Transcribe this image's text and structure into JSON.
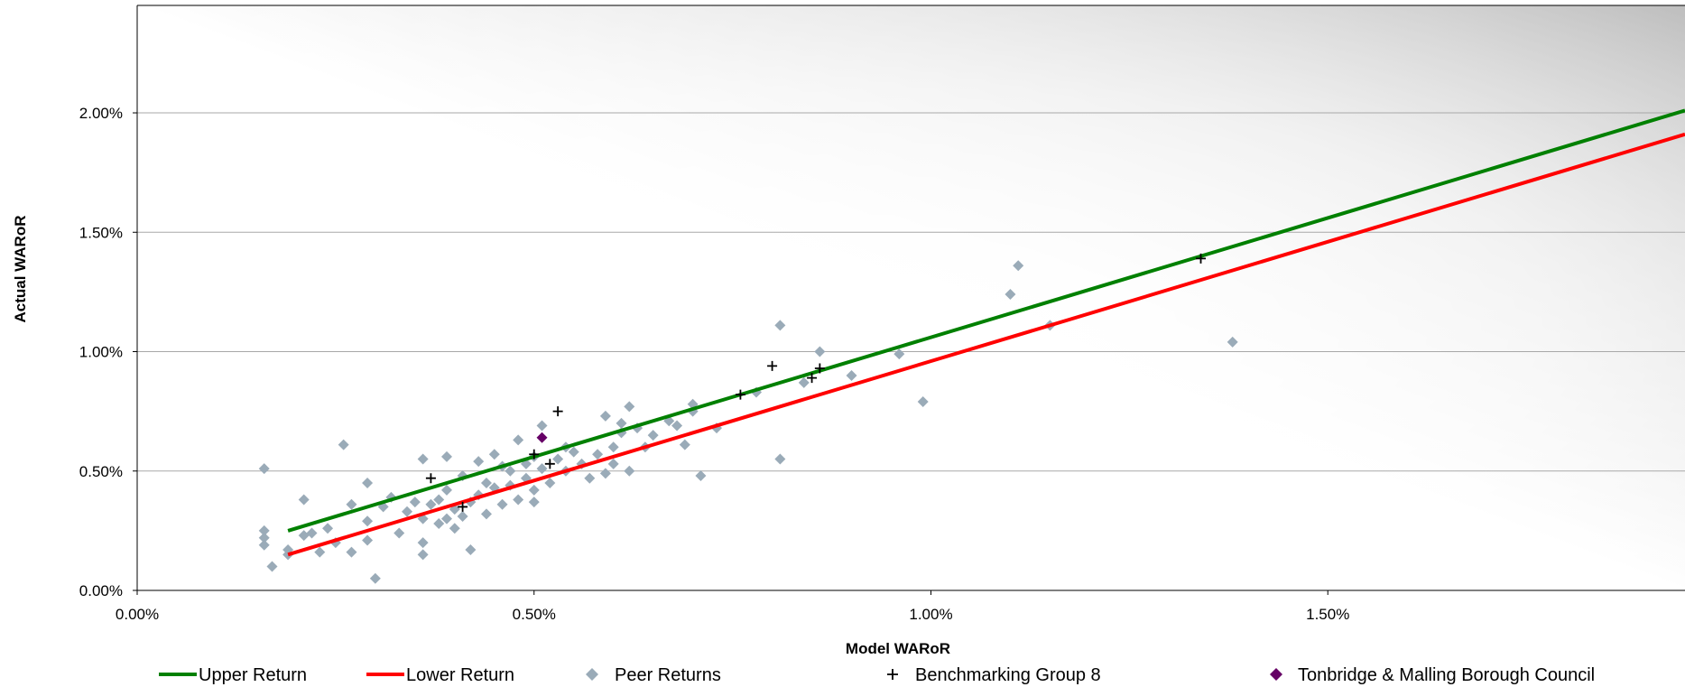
{
  "chart_data": {
    "type": "scatter",
    "title": "",
    "xlabel": "Model WARoR",
    "ylabel": "Actual WARoR",
    "xlim": [
      0,
      0.0195
    ],
    "ylim": [
      0,
      0.0245
    ],
    "x_ticks": [
      {
        "value": 0.0,
        "label": "0.00%"
      },
      {
        "value": 0.005,
        "label": "0.50%"
      },
      {
        "value": 0.01,
        "label": "1.00%"
      },
      {
        "value": 0.015,
        "label": "1.50%"
      }
    ],
    "y_ticks": [
      {
        "value": 0.0,
        "label": "0.00%"
      },
      {
        "value": 0.005,
        "label": "0.50%"
      },
      {
        "value": 0.01,
        "label": "1.00%"
      },
      {
        "value": 0.015,
        "label": "1.50%"
      },
      {
        "value": 0.02,
        "label": "2.00%"
      }
    ],
    "grid": "horizontal",
    "legend_position": "bottom",
    "colors": {
      "upper": "#008000",
      "lower": "#ff0000",
      "peer": "#9aabb8",
      "benchmark": "#000000",
      "council": "#660066",
      "background_light": "#ffffff",
      "background_dark": "#bdbdbd"
    },
    "series": [
      {
        "name": "Upper Return",
        "kind": "line",
        "points": [
          [
            0.0019,
            0.0025
          ],
          [
            0.0195,
            0.0201
          ]
        ]
      },
      {
        "name": "Lower Return",
        "kind": "line",
        "points": [
          [
            0.0019,
            0.0015
          ],
          [
            0.0195,
            0.0191
          ]
        ]
      },
      {
        "name": "Peer Returns",
        "kind": "scatter",
        "marker": "diamond",
        "points": [
          [
            0.0016,
            0.0051
          ],
          [
            0.0016,
            0.0025
          ],
          [
            0.0016,
            0.0022
          ],
          [
            0.0016,
            0.0019
          ],
          [
            0.0017,
            0.001
          ],
          [
            0.0019,
            0.0017
          ],
          [
            0.0019,
            0.0015
          ],
          [
            0.0021,
            0.0038
          ],
          [
            0.0021,
            0.0023
          ],
          [
            0.0022,
            0.0024
          ],
          [
            0.0023,
            0.0016
          ],
          [
            0.0024,
            0.0026
          ],
          [
            0.0025,
            0.002
          ],
          [
            0.0026,
            0.0061
          ],
          [
            0.0027,
            0.0036
          ],
          [
            0.0027,
            0.0016
          ],
          [
            0.0029,
            0.0045
          ],
          [
            0.0029,
            0.0029
          ],
          [
            0.0029,
            0.0021
          ],
          [
            0.003,
            0.0005
          ],
          [
            0.0031,
            0.0035
          ],
          [
            0.0032,
            0.0039
          ],
          [
            0.0033,
            0.0024
          ],
          [
            0.0034,
            0.0033
          ],
          [
            0.0035,
            0.0037
          ],
          [
            0.0036,
            0.0055
          ],
          [
            0.0036,
            0.0015
          ],
          [
            0.0036,
            0.002
          ],
          [
            0.0036,
            0.003
          ],
          [
            0.0037,
            0.0036
          ],
          [
            0.0038,
            0.0038
          ],
          [
            0.0038,
            0.0028
          ],
          [
            0.0039,
            0.0056
          ],
          [
            0.0039,
            0.0042
          ],
          [
            0.0039,
            0.003
          ],
          [
            0.004,
            0.0026
          ],
          [
            0.004,
            0.0034
          ],
          [
            0.0041,
            0.0031
          ],
          [
            0.0041,
            0.0048
          ],
          [
            0.0042,
            0.0017
          ],
          [
            0.0042,
            0.0037
          ],
          [
            0.0043,
            0.0054
          ],
          [
            0.0043,
            0.004
          ],
          [
            0.0044,
            0.0032
          ],
          [
            0.0044,
            0.0045
          ],
          [
            0.0045,
            0.0057
          ],
          [
            0.0045,
            0.0043
          ],
          [
            0.0046,
            0.0036
          ],
          [
            0.0046,
            0.0052
          ],
          [
            0.0047,
            0.005
          ],
          [
            0.0047,
            0.0044
          ],
          [
            0.0048,
            0.0063
          ],
          [
            0.0048,
            0.0038
          ],
          [
            0.0049,
            0.0053
          ],
          [
            0.0049,
            0.0047
          ],
          [
            0.005,
            0.0042
          ],
          [
            0.005,
            0.0056
          ],
          [
            0.005,
            0.0037
          ],
          [
            0.0051,
            0.0069
          ],
          [
            0.0051,
            0.0051
          ],
          [
            0.0052,
            0.0045
          ],
          [
            0.0053,
            0.0055
          ],
          [
            0.0054,
            0.006
          ],
          [
            0.0054,
            0.005
          ],
          [
            0.0055,
            0.0058
          ],
          [
            0.0056,
            0.0053
          ],
          [
            0.0057,
            0.0047
          ],
          [
            0.0058,
            0.0057
          ],
          [
            0.0059,
            0.0073
          ],
          [
            0.0059,
            0.0049
          ],
          [
            0.006,
            0.0053
          ],
          [
            0.006,
            0.006
          ],
          [
            0.0061,
            0.007
          ],
          [
            0.0061,
            0.0066
          ],
          [
            0.0062,
            0.005
          ],
          [
            0.0062,
            0.0077
          ],
          [
            0.0063,
            0.0068
          ],
          [
            0.0064,
            0.006
          ],
          [
            0.0065,
            0.0065
          ],
          [
            0.0067,
            0.0071
          ],
          [
            0.0068,
            0.0069
          ],
          [
            0.0069,
            0.0061
          ],
          [
            0.007,
            0.0078
          ],
          [
            0.007,
            0.0075
          ],
          [
            0.0071,
            0.0048
          ],
          [
            0.0073,
            0.0068
          ],
          [
            0.0078,
            0.0083
          ],
          [
            0.0081,
            0.0055
          ],
          [
            0.0081,
            0.0111
          ],
          [
            0.0084,
            0.0087
          ],
          [
            0.0086,
            0.01
          ],
          [
            0.009,
            0.009
          ],
          [
            0.0096,
            0.0099
          ],
          [
            0.0099,
            0.0079
          ],
          [
            0.011,
            0.0124
          ],
          [
            0.0111,
            0.0136
          ],
          [
            0.0115,
            0.0111
          ],
          [
            0.0138,
            0.0104
          ]
        ]
      },
      {
        "name": "Benchmarking Group 8",
        "kind": "scatter",
        "marker": "plus",
        "points": [
          [
            0.0037,
            0.0047
          ],
          [
            0.0041,
            0.0035
          ],
          [
            0.005,
            0.0057
          ],
          [
            0.0052,
            0.0053
          ],
          [
            0.0053,
            0.0075
          ],
          [
            0.0076,
            0.0082
          ],
          [
            0.008,
            0.0094
          ],
          [
            0.0085,
            0.0089
          ],
          [
            0.0086,
            0.0093
          ],
          [
            0.0134,
            0.0139
          ]
        ]
      },
      {
        "name": "Tonbridge & Malling Borough Council",
        "kind": "scatter",
        "marker": "diamond",
        "points": [
          [
            0.0051,
            0.0064
          ]
        ]
      }
    ]
  }
}
